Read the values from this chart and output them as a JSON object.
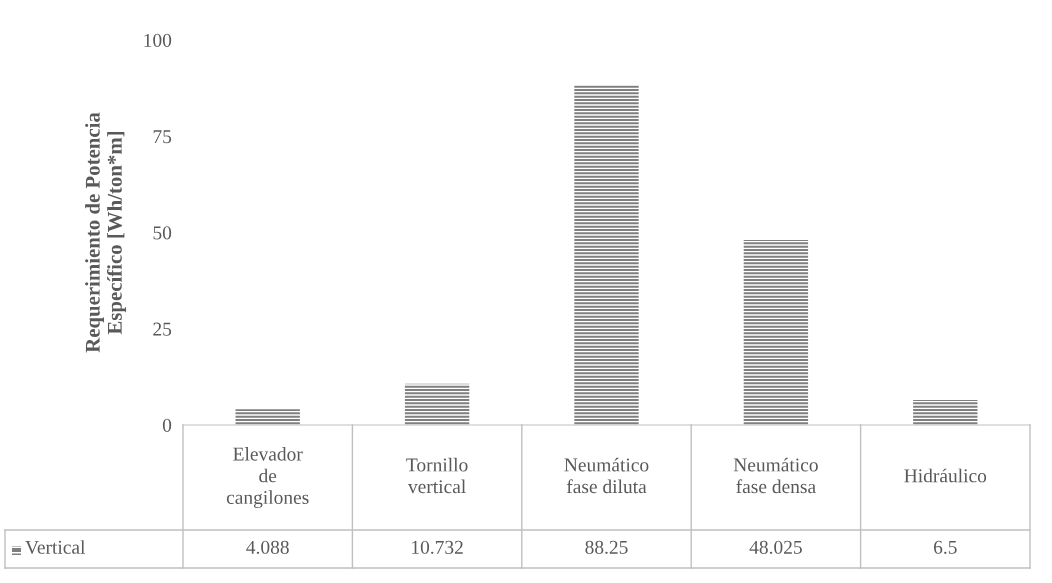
{
  "chart_data": {
    "type": "bar",
    "ylabel": "Requerimiento de Potencia\nEspecífico [Wh/ton*m]",
    "categories": [
      "Elevador\nde\ncangilones",
      "Tornillo\nvertical",
      "Neumático\nfase diluta",
      "Neumático\nfase densa",
      "Hidráulico"
    ],
    "series": [
      {
        "name": "Vertical",
        "color": "#7f7f7f",
        "values": [
          4.088,
          10.732,
          88.25,
          48.025,
          6.5
        ]
      }
    ],
    "ylim": [
      0,
      100
    ],
    "yticks": [
      0,
      25,
      50,
      75,
      100
    ],
    "grid": false,
    "data_labels": true,
    "legend": "bottom"
  }
}
